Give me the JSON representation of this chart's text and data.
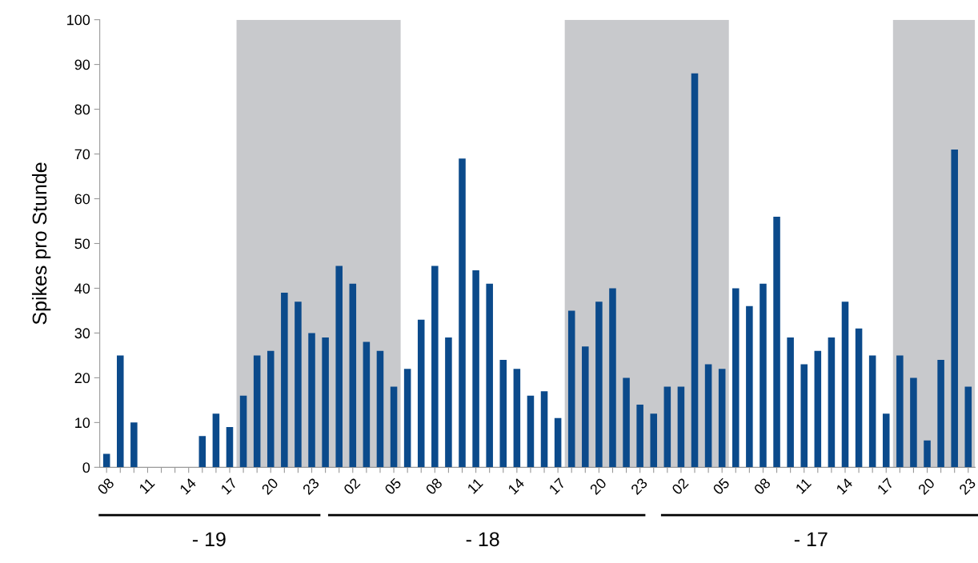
{
  "chart_data": {
    "type": "bar",
    "ylabel": "Spikes pro Stunde",
    "categories": [
      "08",
      null,
      null,
      "11",
      null,
      null,
      "14",
      null,
      null,
      "17",
      null,
      null,
      "20",
      null,
      null,
      "23",
      null,
      null,
      "02",
      null,
      null,
      "05",
      null,
      null,
      "08",
      null,
      null,
      "11",
      null,
      null,
      "14",
      null,
      null,
      "17",
      null,
      null,
      "20",
      null,
      null,
      "23",
      null,
      null,
      "02",
      null,
      null,
      "05",
      null,
      null,
      "08",
      null,
      null,
      "11",
      null,
      null,
      "14",
      null,
      null,
      "17",
      null,
      null,
      "20",
      null,
      null,
      "23"
    ],
    "values": [
      3,
      25,
      10,
      0,
      0,
      0,
      0,
      7,
      12,
      9,
      16,
      25,
      26,
      39,
      37,
      30,
      29,
      45,
      41,
      28,
      26,
      18,
      22,
      33,
      45,
      29,
      69,
      44,
      41,
      24,
      22,
      16,
      17,
      11,
      35,
      27,
      37,
      40,
      20,
      14,
      12,
      18,
      18,
      88,
      23,
      22,
      40,
      36,
      41,
      56,
      29,
      23,
      26,
      29,
      37,
      31,
      25,
      12,
      25,
      20,
      6,
      24,
      71,
      18
    ],
    "color": "#0b4a8b",
    "ylim": [
      0,
      100
    ],
    "yticks": [
      0,
      10,
      20,
      30,
      40,
      50,
      60,
      70,
      80,
      90,
      100
    ],
    "grid": false,
    "annotations": [
      "- 19",
      "- 18",
      "- 17"
    ]
  }
}
